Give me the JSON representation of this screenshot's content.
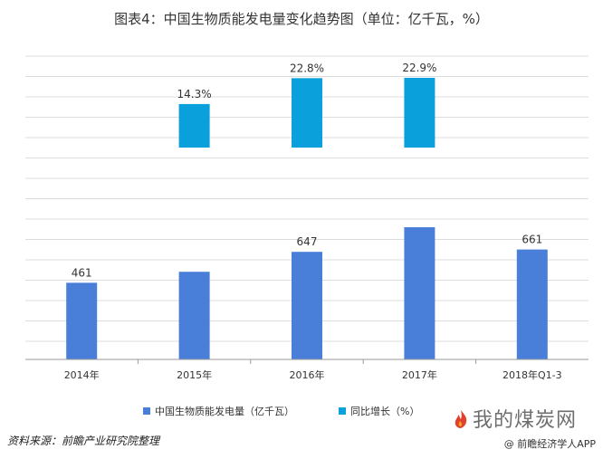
{
  "colors": {
    "series_generation": "#4a7fd9",
    "series_growth": "#0aa0db",
    "gridline": "#dcdcdc",
    "axis": "#9a9a9a"
  },
  "title": "图表4：中国生物质能发电量变化趋势图（单位：亿千瓦，%）",
  "source": "资料来源：前瞻产业研究院整理",
  "brand": {
    "main": "我的煤炭网",
    "sub": "@ 前瞻经济学人APP"
  },
  "chart_data": {
    "type": "bar",
    "categories": [
      "2014年",
      "2015年",
      "2016年",
      "2017年",
      "2018年Q1-3"
    ],
    "series": [
      {
        "name": "中国生物质能发电量（亿千瓦）",
        "values": [
          461,
          527,
          647,
          795,
          661
        ],
        "labels": [
          "461",
          "",
          "647",
          "",
          "661"
        ]
      },
      {
        "name": "同比增长（%）",
        "values": [
          null,
          14.3,
          22.8,
          22.9,
          null
        ],
        "labels": [
          "",
          "14.3%",
          "22.8%",
          "22.9%",
          ""
        ]
      }
    ],
    "legend": "bottom-center",
    "grid": true
  }
}
